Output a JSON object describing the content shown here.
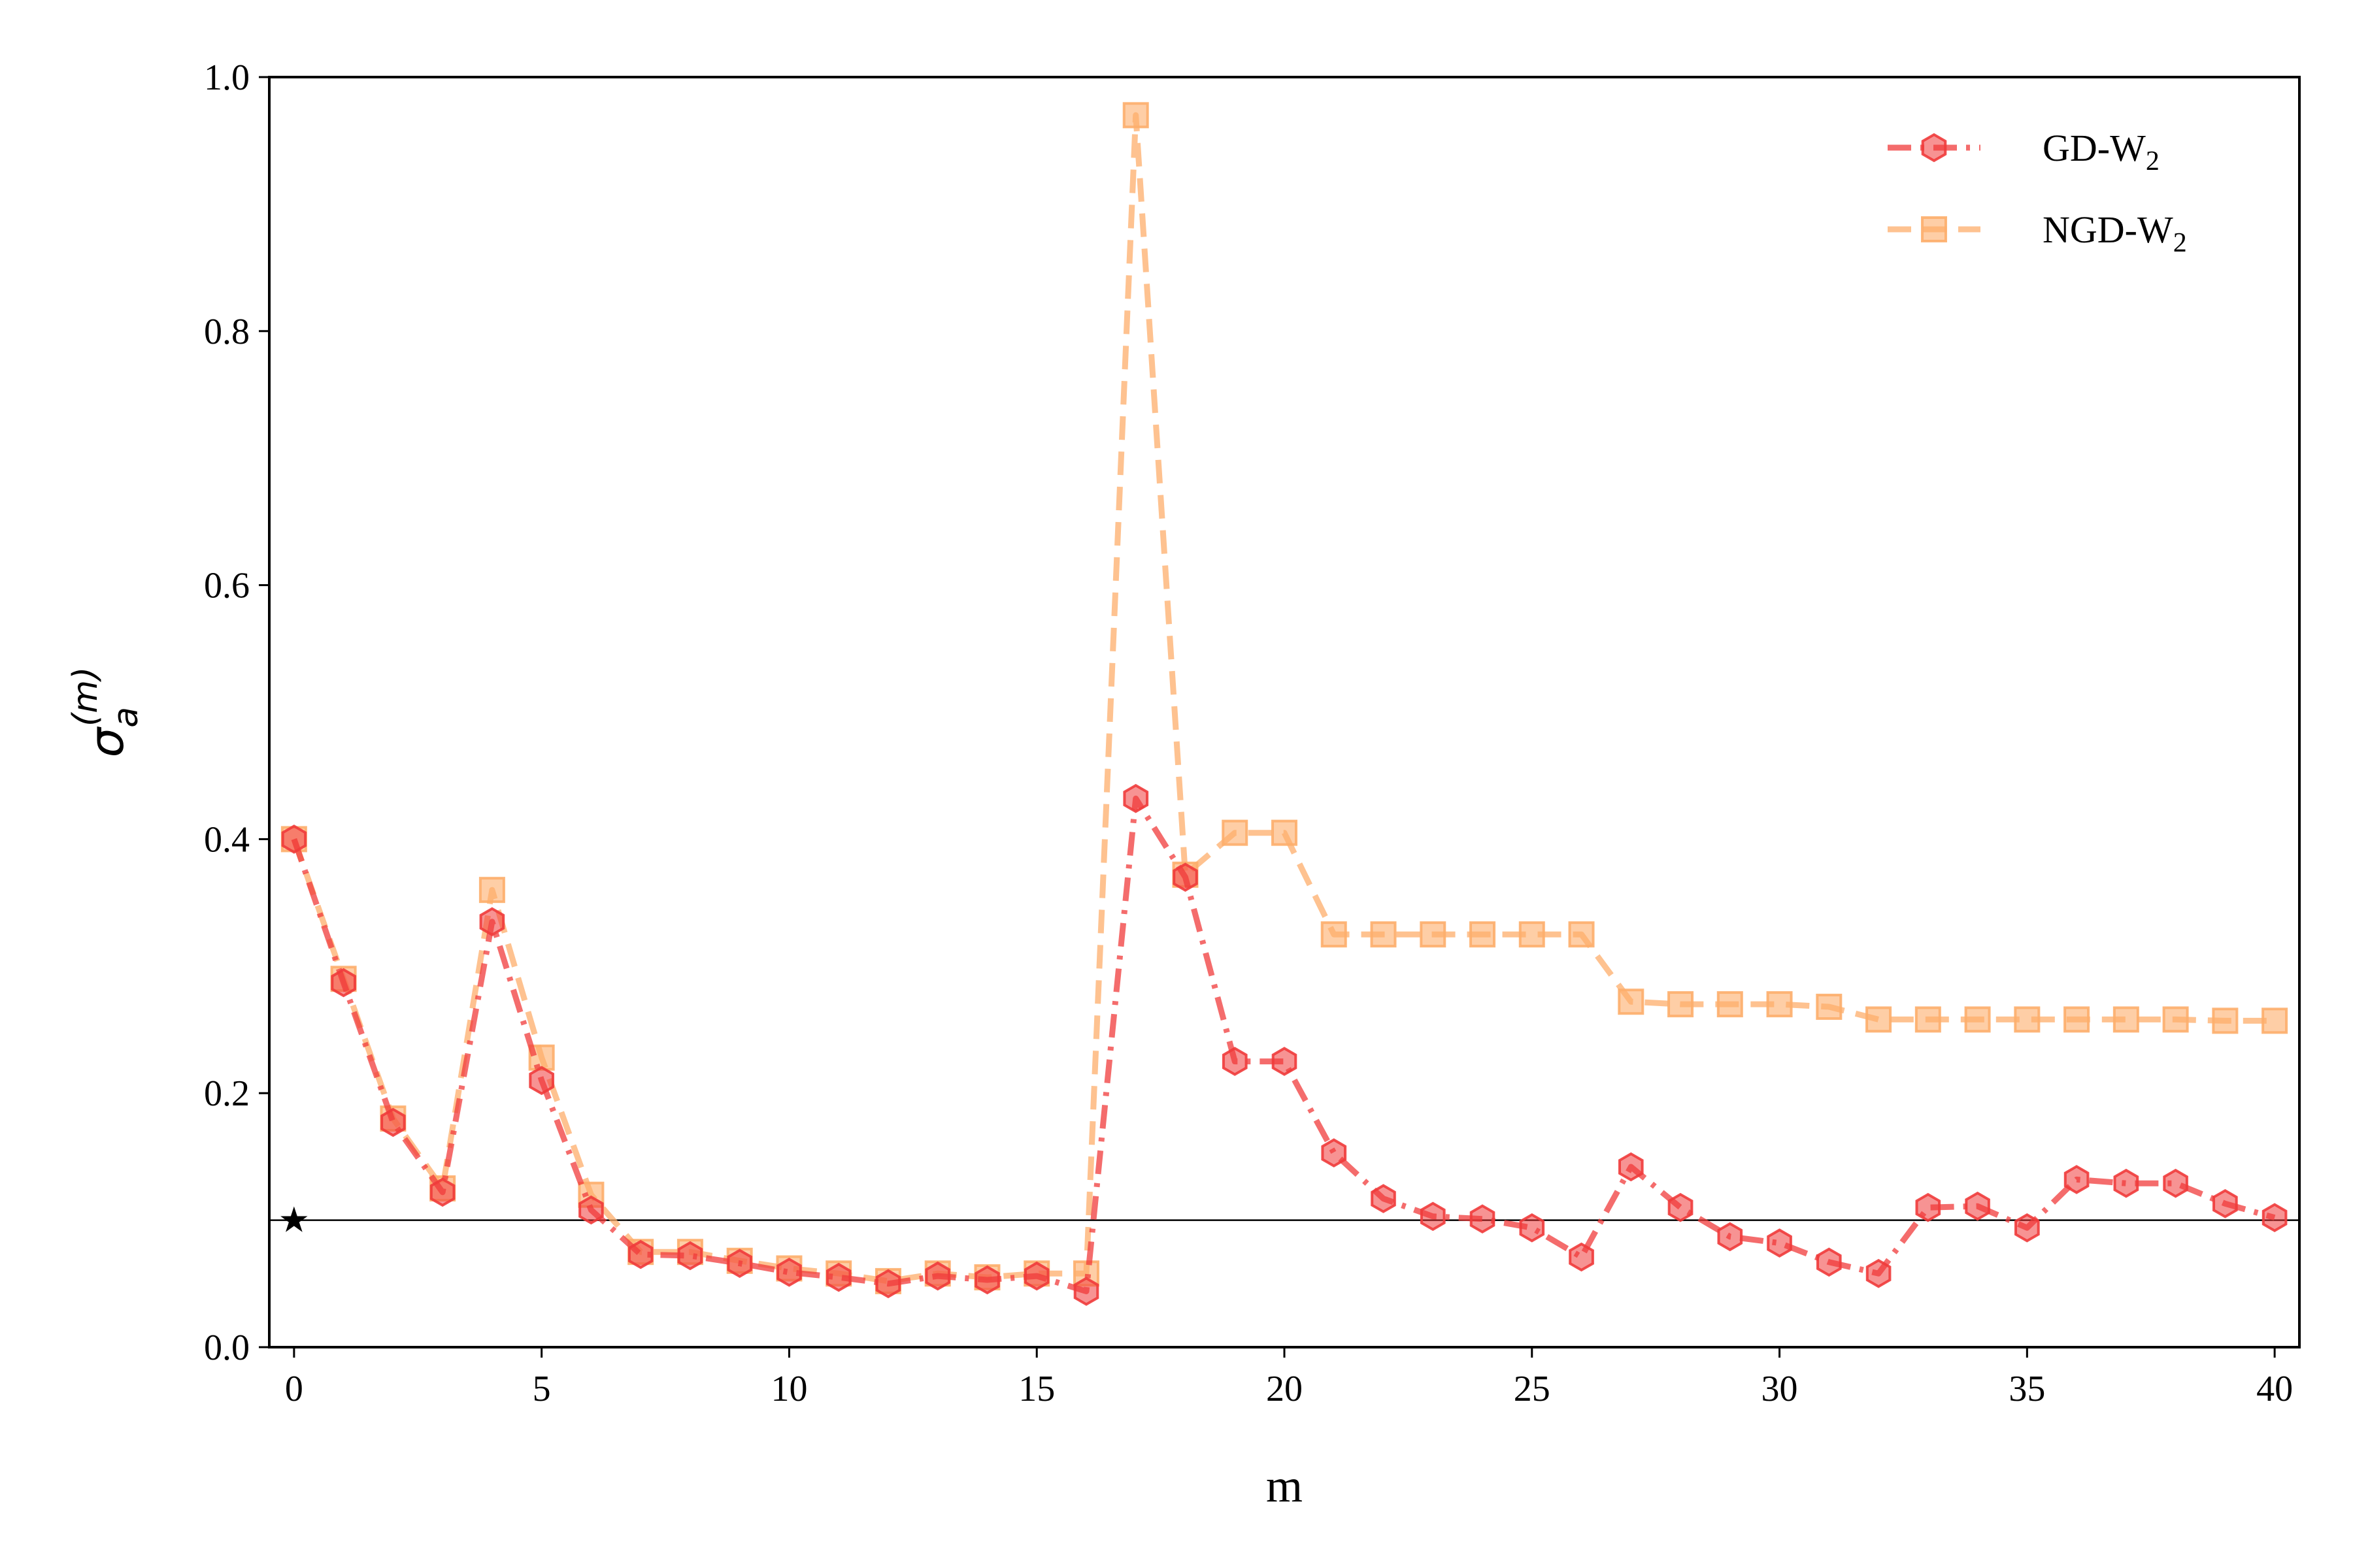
{
  "chart_data": {
    "type": "line",
    "xlabel": "m",
    "ylabel": "σ",
    "ylabel_sub": "a",
    "ylabel_sup": "(m)",
    "xlim": [
      -0.5,
      40.5
    ],
    "ylim": [
      0.0,
      1.0
    ],
    "xticks": [
      0,
      5,
      10,
      15,
      20,
      25,
      30,
      35,
      40
    ],
    "xtick_labels": [
      "0",
      "5",
      "10",
      "15",
      "20",
      "25",
      "30",
      "35",
      "40"
    ],
    "yticks": [
      0.0,
      0.2,
      0.4,
      0.6,
      0.8,
      1.0
    ],
    "ytick_labels": [
      "0.0",
      "0.2",
      "0.4",
      "0.6",
      "0.8",
      "1.0"
    ],
    "grid": false,
    "legend_position": "top-right",
    "reference_line": {
      "y": 0.1,
      "color": "#000000"
    },
    "reference_marker": {
      "x": 0,
      "y": 0.1,
      "symbol": "★",
      "color": "#000000"
    },
    "x": [
      0,
      1,
      2,
      3,
      4,
      5,
      6,
      7,
      8,
      9,
      10,
      11,
      12,
      13,
      14,
      15,
      16,
      17,
      18,
      19,
      20,
      21,
      22,
      23,
      24,
      25,
      26,
      27,
      28,
      29,
      30,
      31,
      32,
      33,
      34,
      35,
      36,
      37,
      38,
      39,
      40
    ],
    "series": [
      {
        "name": "NGD-W",
        "name_sub": "2",
        "color": "#fdae6b",
        "marker": "square",
        "dash": "dashed",
        "values": [
          0.4,
          0.29,
          0.18,
          0.125,
          0.36,
          0.228,
          0.12,
          0.075,
          0.075,
          0.068,
          0.062,
          0.058,
          0.052,
          0.058,
          0.055,
          0.058,
          0.058,
          0.97,
          0.372,
          0.405,
          0.405,
          0.325,
          0.325,
          0.325,
          0.325,
          0.325,
          0.325,
          0.272,
          0.27,
          0.27,
          0.27,
          0.268,
          0.258,
          0.258,
          0.258,
          0.258,
          0.258,
          0.258,
          0.258,
          0.257,
          0.257
        ]
      },
      {
        "name": "GD-W",
        "name_sub": "2",
        "color": "#f03b3b",
        "marker": "hexagon",
        "dash": "dashdot",
        "values": [
          0.4,
          0.287,
          0.177,
          0.122,
          0.335,
          0.21,
          0.108,
          0.073,
          0.072,
          0.066,
          0.059,
          0.055,
          0.05,
          0.056,
          0.053,
          0.056,
          0.044,
          0.432,
          0.37,
          0.225,
          0.225,
          0.153,
          0.117,
          0.103,
          0.101,
          0.094,
          0.071,
          0.142,
          0.11,
          0.087,
          0.082,
          0.067,
          0.058,
          0.11,
          0.111,
          0.094,
          0.132,
          0.129,
          0.129,
          0.113,
          0.102
        ]
      }
    ]
  }
}
